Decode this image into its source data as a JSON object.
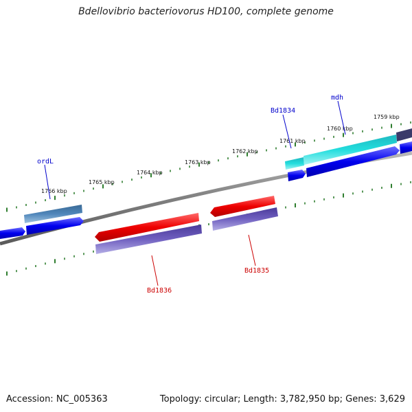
{
  "title": "Bdellovibrio bacteriovorus HD100, complete genome",
  "footer": {
    "accession": "Accession: NC_005363",
    "summary": "Topology: circular; Length: 3,782,950 bp; Genes: 3,629"
  },
  "scale_labels": [
    "1766 kbp",
    "1765 kbp",
    "1764 kbp",
    "1763 kbp",
    "1762 kbp",
    "1761 kbp",
    "1760 kbp",
    "1759 kbp"
  ],
  "gene_labels": [
    {
      "text": "ordL",
      "color": "#0000cc"
    },
    {
      "text": "Bd1834",
      "color": "#0000cc"
    },
    {
      "text": "mdh",
      "color": "#0000cc"
    },
    {
      "text": "Bd1836",
      "color": "#cc0000"
    },
    {
      "text": "Bd1835",
      "color": "#cc0000"
    }
  ],
  "colors": {
    "backbone": "#808080",
    "tick": "#2e7d2e",
    "forward_cds": "#0000ee",
    "forward_gene": "#4a7fb0",
    "forward_gene_light": "#22dddd",
    "reverse_cds": "#ee0000",
    "reverse_gene": "#7060c0",
    "dark_feature": "#3a3a6a"
  }
}
